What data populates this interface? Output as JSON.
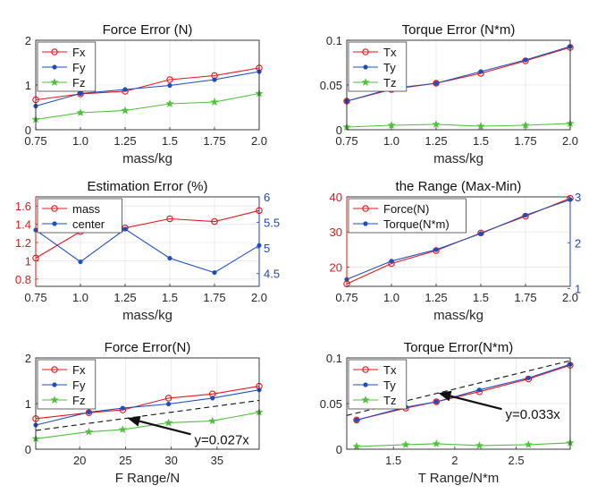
{
  "chart_data": [
    {
      "type": "line",
      "title": "Force Error (N)",
      "xlabel": "mass/kg",
      "ylabel": "",
      "x": [
        0.75,
        1.0,
        1.25,
        1.5,
        1.75,
        2.0
      ],
      "xticks": [
        "0.75",
        "1.0",
        "1.25",
        "1.5",
        "1.75",
        "2.0"
      ],
      "xlim": [
        0.75,
        2.0
      ],
      "ylim": [
        0,
        2
      ],
      "yticks": [
        "0",
        "1",
        "2"
      ],
      "grid": true,
      "legend": "top-left",
      "series": [
        {
          "name": "Fx",
          "color": "#e8151a",
          "marker": "circle",
          "values": [
            0.67,
            0.8,
            0.86,
            1.12,
            1.21,
            1.38
          ]
        },
        {
          "name": "Fy",
          "color": "#1f4fbf",
          "marker": "dot",
          "values": [
            0.53,
            0.81,
            0.9,
            0.99,
            1.12,
            1.3
          ]
        },
        {
          "name": "Fz",
          "color": "#4fc23c",
          "marker": "star",
          "values": [
            0.23,
            0.38,
            0.43,
            0.58,
            0.62,
            0.81
          ]
        }
      ]
    },
    {
      "type": "line",
      "title": "Torque Error (N*m)",
      "xlabel": "mass/kg",
      "ylabel": "",
      "x": [
        0.75,
        1.0,
        1.25,
        1.5,
        1.75,
        2.0
      ],
      "xticks": [
        "0.75",
        "1.0",
        "1.25",
        "1.5",
        "1.75",
        "2.0"
      ],
      "xlim": [
        0.75,
        2.0
      ],
      "ylim": [
        0,
        0.1
      ],
      "yticks": [
        "0",
        "0.05",
        "0.1"
      ],
      "grid": true,
      "legend": "top-left",
      "series": [
        {
          "name": "Tx",
          "color": "#e8151a",
          "marker": "circle",
          "values": [
            0.032,
            0.045,
            0.052,
            0.063,
            0.077,
            0.092
          ]
        },
        {
          "name": "Ty",
          "color": "#1f4fbf",
          "marker": "dot",
          "values": [
            0.032,
            0.046,
            0.052,
            0.065,
            0.078,
            0.093
          ]
        },
        {
          "name": "Tz",
          "color": "#4fc23c",
          "marker": "star",
          "values": [
            0.003,
            0.005,
            0.006,
            0.004,
            0.005,
            0.007
          ]
        }
      ]
    },
    {
      "type": "line",
      "title": "Estimation Error (%)",
      "xlabel": "mass/kg",
      "ylabel": "",
      "x": [
        0.75,
        1.0,
        1.25,
        1.5,
        1.75,
        2.0
      ],
      "xticks": [
        "0.75",
        "1.0",
        "1.25",
        "1.5",
        "1.75",
        "2.0"
      ],
      "xlim": [
        0.75,
        2.0
      ],
      "ylim": [
        0.72,
        1.7
      ],
      "yticks": [
        "0.8",
        "1",
        "1.2",
        "1.4",
        "1.6"
      ],
      "y2lim": [
        4.25,
        6.0
      ],
      "y2ticks": [
        "4.5",
        "5",
        "5.5",
        "6"
      ],
      "grid": true,
      "legend": "top-left",
      "series": [
        {
          "name": "mass",
          "color": "#e8151a",
          "marker": "circle",
          "axis": "left",
          "values": [
            1.03,
            1.32,
            1.36,
            1.46,
            1.43,
            1.55
          ]
        },
        {
          "name": "center",
          "color": "#1f4fbf",
          "marker": "dot",
          "axis": "right",
          "values": [
            5.35,
            4.73,
            5.37,
            4.8,
            4.52,
            5.05
          ]
        }
      ]
    },
    {
      "type": "line",
      "title": "the Range (Max-Min)",
      "xlabel": "mass/kg",
      "ylabel": "",
      "x": [
        0.75,
        1.0,
        1.25,
        1.5,
        1.75,
        2.0
      ],
      "xticks": [
        "0.75",
        "1.0",
        "1.25",
        "1.5",
        "1.75",
        "2.0"
      ],
      "xlim": [
        0.75,
        2.0
      ],
      "ylim": [
        14.5,
        40
      ],
      "yticks": [
        "20",
        "30",
        "40"
      ],
      "y2lim": [
        1.05,
        3.0
      ],
      "y2ticks": [
        "1",
        "2",
        "3"
      ],
      "grid": true,
      "legend": "top-left",
      "series": [
        {
          "name": "Force(N)",
          "color": "#e8151a",
          "marker": "circle",
          "axis": "left",
          "values": [
            15.2,
            21.0,
            24.7,
            29.7,
            34.5,
            39.6
          ]
        },
        {
          "name": "Torque(N*m)",
          "color": "#1f4fbf",
          "marker": "dot",
          "axis": "right",
          "values": [
            1.2,
            1.6,
            1.85,
            2.2,
            2.6,
            2.94
          ]
        }
      ]
    },
    {
      "type": "line",
      "title": "Force Error(N)",
      "xlabel": "F Range/N",
      "ylabel": "",
      "x": [
        15.2,
        21.0,
        24.7,
        29.7,
        34.5,
        39.6
      ],
      "xticks": [
        "20",
        "25",
        "30",
        "35"
      ],
      "xlim": [
        15.2,
        39.6
      ],
      "ylim": [
        0,
        2
      ],
      "yticks": [
        "0",
        "1",
        "2"
      ],
      "grid": true,
      "legend": "top-left",
      "series": [
        {
          "name": "Fx",
          "color": "#e8151a",
          "marker": "circle",
          "values": [
            0.67,
            0.8,
            0.86,
            1.12,
            1.21,
            1.38
          ]
        },
        {
          "name": "Fy",
          "color": "#1f4fbf",
          "marker": "dot",
          "values": [
            0.53,
            0.81,
            0.9,
            0.99,
            1.12,
            1.3
          ]
        },
        {
          "name": "Fz",
          "color": "#4fc23c",
          "marker": "star",
          "values": [
            0.23,
            0.38,
            0.43,
            0.58,
            0.62,
            0.81
          ]
        }
      ],
      "fit": {
        "slope": 0.027,
        "label": "y=0.027x"
      }
    },
    {
      "type": "line",
      "title": "Torque Error(N*m)",
      "xlabel": "T Range/N*m",
      "ylabel": "",
      "x": [
        1.2,
        1.6,
        1.85,
        2.2,
        2.6,
        2.94
      ],
      "xticks": [
        "1.5",
        "2",
        "2.5"
      ],
      "xlim": [
        1.12,
        2.94
      ],
      "ylim": [
        0,
        0.1
      ],
      "yticks": [
        "0",
        "0.05",
        "0.1"
      ],
      "grid": true,
      "legend": "top-left",
      "series": [
        {
          "name": "Tx",
          "color": "#e8151a",
          "marker": "circle",
          "values": [
            0.032,
            0.045,
            0.052,
            0.063,
            0.077,
            0.092
          ]
        },
        {
          "name": "Ty",
          "color": "#1f4fbf",
          "marker": "dot",
          "values": [
            0.032,
            0.046,
            0.052,
            0.065,
            0.078,
            0.093
          ]
        },
        {
          "name": "Tz",
          "color": "#4fc23c",
          "marker": "star",
          "values": [
            0.003,
            0.005,
            0.006,
            0.004,
            0.005,
            0.007
          ]
        }
      ],
      "fit": {
        "slope": 0.033,
        "label": "y=0.033x"
      }
    }
  ]
}
